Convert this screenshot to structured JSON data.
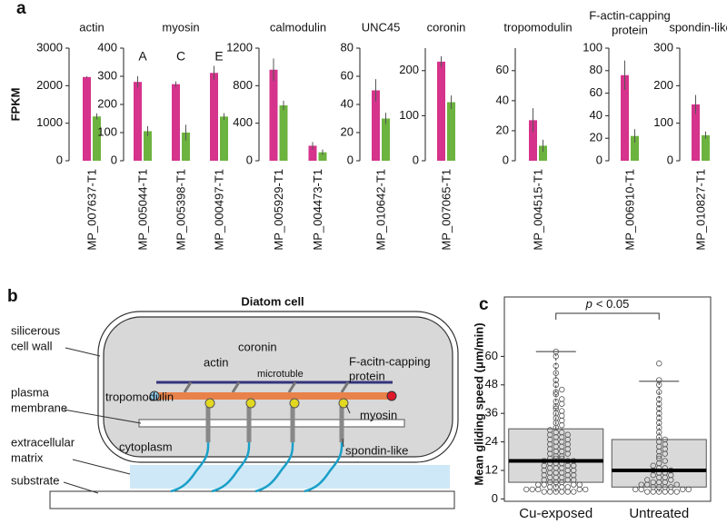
{
  "panel_labels": [
    "a",
    "b",
    "c"
  ],
  "chart_data": [
    {
      "type": "bar",
      "title": "actin",
      "ylabel": "FPKM",
      "categories": [
        "MP_007637-T1"
      ],
      "ylim": [
        0,
        3000
      ],
      "yticks": [
        0,
        1000,
        2000,
        3000
      ],
      "series": [
        {
          "color": "#d5338c",
          "values": [
            2230
          ],
          "errors": [
            20
          ]
        },
        {
          "color": "#6db33f",
          "values": [
            1180
          ],
          "errors": [
            80
          ]
        }
      ]
    },
    {
      "type": "bar",
      "title": "myosin",
      "categories": [
        "MP_005044-T1",
        "MP_005398-T1",
        "MP_000497-T1"
      ],
      "category_annotations": [
        "A",
        "C",
        "E"
      ],
      "ylim": [
        0,
        400
      ],
      "yticks": [
        0,
        100,
        200,
        300,
        400
      ],
      "series": [
        {
          "color": "#d5338c",
          "values": [
            280,
            272,
            312
          ],
          "errors": [
            20,
            10,
            25
          ]
        },
        {
          "color": "#6db33f",
          "values": [
            105,
            100,
            157
          ],
          "errors": [
            18,
            28,
            12
          ]
        }
      ]
    },
    {
      "type": "bar",
      "title": "calmodulin",
      "categories": [
        "MP_005929-T1",
        "MP_004473-T1"
      ],
      "ylim": [
        0,
        1200
      ],
      "yticks": [
        0,
        400,
        800,
        1200
      ],
      "series": [
        {
          "color": "#d5338c",
          "values": [
            970,
            160
          ],
          "errors": [
            120,
            40
          ]
        },
        {
          "color": "#6db33f",
          "values": [
            590,
            90
          ],
          "errors": [
            50,
            30
          ]
        }
      ]
    },
    {
      "type": "bar",
      "title": "UNC45",
      "categories": [
        "MP_010642-T1"
      ],
      "ylim": [
        0,
        80
      ],
      "yticks": [
        0,
        20,
        40,
        60,
        80
      ],
      "series": [
        {
          "color": "#d5338c",
          "values": [
            50
          ],
          "errors": [
            8
          ]
        },
        {
          "color": "#6db33f",
          "values": [
            30
          ],
          "errors": [
            4
          ]
        }
      ]
    },
    {
      "type": "bar",
      "title": "coronin",
      "categories": [
        "MP_007065-T1"
      ],
      "ylim": [
        0,
        250
      ],
      "yticks": [
        0,
        100,
        200
      ],
      "series": [
        {
          "color": "#d5338c",
          "values": [
            220
          ],
          "errors": [
            12
          ]
        },
        {
          "color": "#6db33f",
          "values": [
            130
          ],
          "errors": [
            15
          ]
        }
      ]
    },
    {
      "type": "bar",
      "title": "tropomodulin",
      "categories": [
        "MP_004515-T1"
      ],
      "ylim": [
        0,
        75
      ],
      "yticks": [
        0,
        20,
        40,
        60
      ],
      "series": [
        {
          "color": "#d5338c",
          "values": [
            27
          ],
          "errors": [
            8
          ]
        },
        {
          "color": "#6db33f",
          "values": [
            10
          ],
          "errors": [
            4
          ]
        }
      ]
    },
    {
      "type": "bar",
      "title": [
        "F-actin-capping",
        "protein"
      ],
      "categories": [
        "MP_006910-T1"
      ],
      "ylim": [
        0,
        100
      ],
      "yticks": [
        0,
        20,
        40,
        60,
        80,
        100
      ],
      "series": [
        {
          "color": "#d5338c",
          "values": [
            76
          ],
          "errors": [
            13
          ]
        },
        {
          "color": "#6db33f",
          "values": [
            22
          ],
          "errors": [
            6
          ]
        }
      ]
    },
    {
      "type": "bar",
      "title": "spondin-like",
      "categories": [
        "MP_010827-T1"
      ],
      "ylim": [
        0,
        300
      ],
      "yticks": [
        0,
        100,
        200,
        300
      ],
      "series": [
        {
          "color": "#d5338c",
          "values": [
            150
          ],
          "errors": [
            25
          ]
        },
        {
          "color": "#6db33f",
          "values": [
            68
          ],
          "errors": [
            10
          ]
        }
      ]
    },
    {
      "type": "box",
      "ylabel": "Mean gliding speed (μm/min)",
      "categories": [
        "Cu-exposed",
        "Untreated"
      ],
      "ylim": [
        -1,
        85
      ],
      "yticks": [
        0,
        12,
        24,
        36,
        48,
        60
      ],
      "box_color": "#d9d9d9",
      "point_color": "#555555",
      "annotation": {
        "italic": "p",
        "text": "< 0.05"
      },
      "boxes": [
        {
          "whislo": 3,
          "q1": 7,
          "med": 16,
          "q3": 29.5,
          "whishi": 62
        },
        {
          "whislo": 3,
          "q1": 5,
          "med": 12,
          "q3": 25,
          "whishi": 49.5
        }
      ],
      "points": [
        [
          3,
          3,
          3,
          3,
          3,
          3,
          4,
          4,
          4,
          4,
          4,
          5,
          5,
          5,
          5,
          6,
          6,
          6,
          6,
          7,
          7,
          7,
          8,
          8,
          8,
          9,
          9,
          9,
          10,
          10,
          10,
          11,
          11,
          11,
          12,
          12,
          12,
          13,
          13,
          13,
          14,
          14,
          14,
          15,
          15,
          15,
          16,
          16,
          16,
          17,
          17,
          17,
          18,
          18,
          19,
          19,
          20,
          20,
          21,
          21,
          22,
          22,
          23,
          23,
          24,
          24,
          25,
          25,
          26,
          26,
          27,
          27,
          28,
          28,
          29,
          30,
          31,
          32,
          33,
          34,
          35,
          36,
          37,
          38,
          39,
          40,
          41,
          42,
          44,
          45,
          46,
          48,
          50,
          53,
          56,
          60,
          62
        ],
        [
          3,
          3,
          3,
          3,
          3,
          3,
          4,
          4,
          4,
          4,
          5,
          5,
          5,
          5,
          6,
          6,
          6,
          7,
          7,
          7,
          8,
          8,
          9,
          9,
          10,
          10,
          11,
          11,
          12,
          12,
          13,
          13,
          14,
          15,
          16,
          17,
          18,
          19,
          20,
          21,
          22,
          23,
          24,
          25,
          26,
          28,
          30,
          32,
          34,
          36,
          38,
          40,
          42,
          45,
          48,
          50,
          57
        ]
      ]
    }
  ],
  "diagram": {
    "title": "Diatom cell",
    "cell_wall": [
      "silicerous",
      "cell wall"
    ],
    "plasma_membrane": [
      "plasma",
      "membrane"
    ],
    "extracellular_matrix": [
      "extracellular",
      "matrix"
    ],
    "substrate": "substrate",
    "tropomodulin": "tropomodulin",
    "actin": "actin",
    "coronin": "coronin",
    "microtubule": "microtuble",
    "capping_protein": [
      "F-acitn-capping",
      "protein"
    ],
    "myosin": "myosin",
    "cytoplasm": "cytoplasm",
    "spondin": "spondin-like"
  }
}
